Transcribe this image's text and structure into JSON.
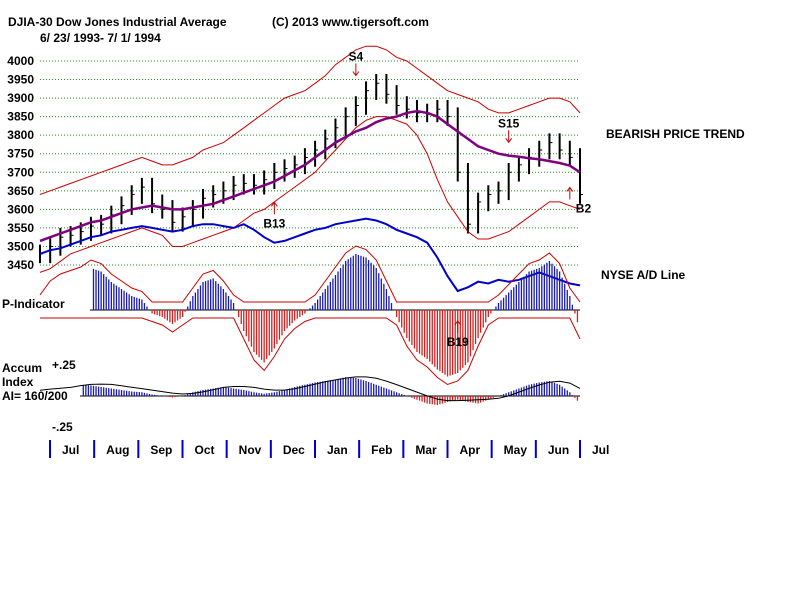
{
  "chart_data": {
    "type": "line",
    "title": "DJIA-30  Dow Jones Industrial Average",
    "copyright": "(C) 2013 www.tigersoft.com",
    "date_range": "6/ 23/ 1993- 7/ 1/ 1994",
    "price_axis": {
      "ylim": [
        3450,
        4000
      ],
      "ticks": [
        3450,
        3500,
        3550,
        3600,
        3650,
        3700,
        3750,
        3800,
        3850,
        3900,
        3950,
        4000
      ],
      "tick_labels": [
        "3450",
        "3500",
        "3550",
        "3600",
        "3650",
        "3700",
        "3750",
        "3800",
        "3850",
        "3900",
        "3950",
        "4000"
      ],
      "grid": true
    },
    "months": [
      "Jul",
      "Aug",
      "Sep",
      "Oct",
      "Nov",
      "Dec",
      "Jan",
      "Feb",
      "Mar",
      "Apr",
      "May",
      "Jun",
      "Jul"
    ],
    "weekly_dates": [
      "1993-06-25",
      "1993-07-02",
      "1993-07-09",
      "1993-07-16",
      "1993-07-23",
      "1993-07-30",
      "1993-08-06",
      "1993-08-13",
      "1993-08-20",
      "1993-08-27",
      "1993-09-03",
      "1993-09-10",
      "1993-09-17",
      "1993-09-24",
      "1993-10-01",
      "1993-10-08",
      "1993-10-15",
      "1993-10-22",
      "1993-10-29",
      "1993-11-05",
      "1993-11-12",
      "1993-11-19",
      "1993-11-26",
      "1993-12-03",
      "1993-12-10",
      "1993-12-17",
      "1993-12-24",
      "1993-12-31",
      "1994-01-07",
      "1994-01-14",
      "1994-01-21",
      "1994-01-28",
      "1994-02-04",
      "1994-02-11",
      "1994-02-18",
      "1994-02-25",
      "1994-03-04",
      "1994-03-11",
      "1994-03-18",
      "1994-03-25",
      "1994-04-01",
      "1994-04-08",
      "1994-04-15",
      "1994-04-22",
      "1994-04-29",
      "1994-05-06",
      "1994-05-13",
      "1994-05-20",
      "1994-05-27",
      "1994-06-03",
      "1994-06-10",
      "1994-06-17",
      "1994-06-24",
      "1994-07-01"
    ],
    "series": [
      {
        "name": "DJIA close",
        "color": "#000000",
        "values": [
          3480,
          3500,
          3525,
          3530,
          3540,
          3555,
          3560,
          3585,
          3610,
          3640,
          3660,
          3615,
          3600,
          3565,
          3580,
          3600,
          3630,
          3640,
          3650,
          3665,
          3670,
          3665,
          3680,
          3700,
          3710,
          3720,
          3740,
          3760,
          3790,
          3820,
          3850,
          3880,
          3920,
          3940,
          3910,
          3880,
          3870,
          3860,
          3860,
          3870,
          3850,
          3700,
          3560,
          3620,
          3640,
          3650,
          3700,
          3720,
          3740,
          3760,
          3780,
          3760,
          3740,
          3640
        ]
      },
      {
        "name": "Upper band",
        "color": "#cc0000",
        "values": [
          3640,
          3650,
          3660,
          3670,
          3680,
          3690,
          3700,
          3710,
          3720,
          3730,
          3740,
          3730,
          3720,
          3720,
          3730,
          3740,
          3760,
          3770,
          3780,
          3800,
          3820,
          3840,
          3860,
          3880,
          3900,
          3910,
          3920,
          3940,
          3960,
          3990,
          4010,
          4030,
          4040,
          4040,
          4030,
          4010,
          4000,
          3980,
          3960,
          3940,
          3920,
          3910,
          3900,
          3890,
          3870,
          3860,
          3860,
          3870,
          3880,
          3890,
          3900,
          3900,
          3890,
          3860
        ]
      },
      {
        "name": "Lower band",
        "color": "#cc0000",
        "values": [
          3430,
          3440,
          3460,
          3480,
          3490,
          3500,
          3510,
          3520,
          3530,
          3540,
          3550,
          3540,
          3530,
          3500,
          3500,
          3510,
          3520,
          3530,
          3540,
          3550,
          3570,
          3590,
          3600,
          3620,
          3640,
          3660,
          3680,
          3700,
          3730,
          3760,
          3790,
          3820,
          3840,
          3850,
          3850,
          3840,
          3830,
          3800,
          3750,
          3680,
          3620,
          3580,
          3540,
          3520,
          3520,
          3530,
          3540,
          3560,
          3580,
          3600,
          3620,
          3620,
          3610,
          3600
        ]
      },
      {
        "name": "Moving average",
        "color": "#800080",
        "values": [
          3515,
          3525,
          3535,
          3545,
          3555,
          3565,
          3570,
          3580,
          3590,
          3600,
          3605,
          3610,
          3605,
          3600,
          3600,
          3605,
          3610,
          3615,
          3625,
          3635,
          3645,
          3655,
          3665,
          3675,
          3690,
          3705,
          3720,
          3740,
          3760,
          3780,
          3795,
          3810,
          3820,
          3835,
          3845,
          3850,
          3860,
          3865,
          3860,
          3850,
          3830,
          3810,
          3790,
          3770,
          3760,
          3750,
          3745,
          3742,
          3738,
          3735,
          3730,
          3725,
          3718,
          3700
        ]
      },
      {
        "name": "NYSE A/D Line",
        "color": "#0000cc",
        "values": [
          3480,
          3490,
          3495,
          3505,
          3515,
          3525,
          3530,
          3540,
          3545,
          3550,
          3555,
          3550,
          3545,
          3540,
          3545,
          3555,
          3560,
          3560,
          3555,
          3550,
          3560,
          3545,
          3525,
          3510,
          3515,
          3525,
          3535,
          3545,
          3550,
          3560,
          3565,
          3570,
          3575,
          3570,
          3560,
          3545,
          3535,
          3525,
          3510,
          3470,
          3420,
          3380,
          3390,
          3405,
          3400,
          3410,
          3405,
          3410,
          3420,
          3430,
          3420,
          3410,
          3400,
          3395
        ]
      }
    ],
    "annotations": [
      {
        "text": "S4",
        "kind": "sell",
        "date": "1994-01-28"
      },
      {
        "text": "S15",
        "kind": "sell",
        "date": "1994-05-13"
      },
      {
        "text": "B13",
        "kind": "buy",
        "date": "1993-12-03"
      },
      {
        "text": "B19",
        "kind": "buy",
        "date": "1994-04-08"
      },
      {
        "text": "B2",
        "kind": "buy",
        "date": "1994-06-24"
      }
    ],
    "trend_label": "BEARISH PRICE TREND",
    "ad_line_label": "NYSE A/D Line",
    "p_indicator": {
      "label": "P-Indicator",
      "values": [
        10,
        30,
        40,
        45,
        50,
        60,
        55,
        40,
        30,
        20,
        15,
        -5,
        -10,
        -20,
        -10,
        20,
        40,
        45,
        30,
        10,
        -30,
        -60,
        -75,
        -55,
        -30,
        -15,
        -5,
        10,
        30,
        50,
        70,
        80,
        75,
        60,
        30,
        -10,
        -40,
        -60,
        -70,
        -85,
        -95,
        -90,
        -75,
        -40,
        -10,
        10,
        25,
        40,
        55,
        60,
        70,
        55,
        20,
        -30
      ]
    },
    "accum_index": {
      "label_line1": "Accum",
      "label_line2": "Index",
      "ai_label": "AI= 160/200",
      "tick_top": "+.25",
      "tick_bottom": "-.25",
      "values": [
        5,
        8,
        10,
        12,
        15,
        14,
        12,
        10,
        8,
        6,
        5,
        2,
        0,
        -2,
        0,
        5,
        8,
        10,
        12,
        10,
        8,
        5,
        3,
        5,
        8,
        12,
        15,
        18,
        20,
        22,
        25,
        24,
        20,
        15,
        10,
        5,
        0,
        -5,
        -10,
        -12,
        -8,
        -5,
        -8,
        -10,
        -5,
        0,
        5,
        10,
        15,
        18,
        20,
        15,
        5,
        -10
      ]
    }
  }
}
